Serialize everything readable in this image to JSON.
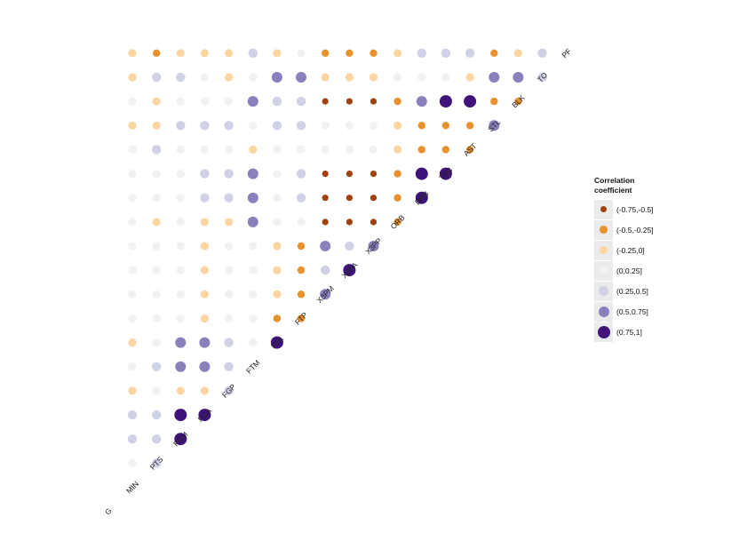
{
  "chart_data": {
    "type": "heatmap",
    "variables": [
      "G",
      "MIN",
      "PTS",
      "FGM",
      "FGA",
      "FGP",
      "FTM",
      "FTA",
      "FTP",
      "X3PM",
      "X3PA",
      "X3PP",
      "ORB",
      "DRB",
      "TRB",
      "AST",
      "STL",
      "BLK",
      "TO",
      "PF"
    ],
    "legend": {
      "title_line1": "Correlation",
      "title_line2": "coefficient",
      "items": [
        {
          "label": "(-0.75,-0.5]",
          "color": "#a1410d"
        },
        {
          "label": "(-0.5,-0.25]",
          "color": "#e8922f"
        },
        {
          "label": "(-0.25,0]",
          "color": "#fbd6a2"
        },
        {
          "label": "(0,0.25]",
          "color": "#f1f1f1"
        },
        {
          "label": "(0.25,0.5]",
          "color": "#cfd1e6"
        },
        {
          "label": "(0.5,0.75]",
          "color": "#8b7fbc"
        },
        {
          "label": "(0.75,1]",
          "color": "#40137a"
        }
      ]
    },
    "correlation_bins_by_row": {
      "MIN": [
        3
      ],
      "PTS": [
        3,
        4
      ],
      "FGM": [
        4,
        4,
        6
      ],
      "FGA": [
        4,
        4,
        6,
        6
      ],
      "FGP": [
        2,
        3,
        2,
        2,
        4
      ],
      "FTM": [
        3,
        4,
        5,
        5,
        4,
        3
      ],
      "FTA": [
        2,
        3,
        5,
        5,
        4,
        3,
        6
      ],
      "FTP": [
        3,
        3,
        3,
        2,
        3,
        3,
        1,
        1
      ],
      "X3PM": [
        3,
        3,
        3,
        2,
        3,
        3,
        2,
        1,
        5
      ],
      "X3PA": [
        3,
        3,
        3,
        2,
        3,
        3,
        2,
        1,
        4,
        6
      ],
      "X3PP": [
        3,
        3,
        3,
        2,
        3,
        3,
        2,
        1,
        5,
        4,
        5
      ],
      "ORB": [
        3,
        2,
        3,
        2,
        2,
        5,
        3,
        3,
        0,
        0,
        0,
        1
      ],
      "DRB": [
        3,
        3,
        3,
        4,
        4,
        5,
        3,
        4,
        0,
        0,
        0,
        1,
        6
      ],
      "TRB": [
        3,
        3,
        3,
        4,
        4,
        5,
        3,
        4,
        0,
        0,
        0,
        1,
        6,
        6
      ],
      "AST": [
        3,
        4,
        3,
        3,
        3,
        2,
        3,
        3,
        3,
        3,
        3,
        2,
        1,
        1,
        1
      ],
      "STL": [
        2,
        2,
        4,
        4,
        4,
        3,
        4,
        4,
        3,
        3,
        3,
        2,
        1,
        1,
        1,
        5
      ],
      "BLK": [
        3,
        2,
        3,
        3,
        3,
        5,
        4,
        4,
        0,
        0,
        0,
        1,
        5,
        6,
        6,
        1,
        1
      ],
      "TO": [
        2,
        4,
        4,
        3,
        2,
        3,
        5,
        5,
        2,
        2,
        2,
        3,
        3,
        3,
        2,
        5,
        5,
        4
      ],
      "PF": [
        2,
        1,
        2,
        2,
        2,
        4,
        2,
        3,
        1,
        1,
        1,
        2,
        4,
        4,
        4,
        1,
        2,
        4,
        3
      ]
    }
  }
}
